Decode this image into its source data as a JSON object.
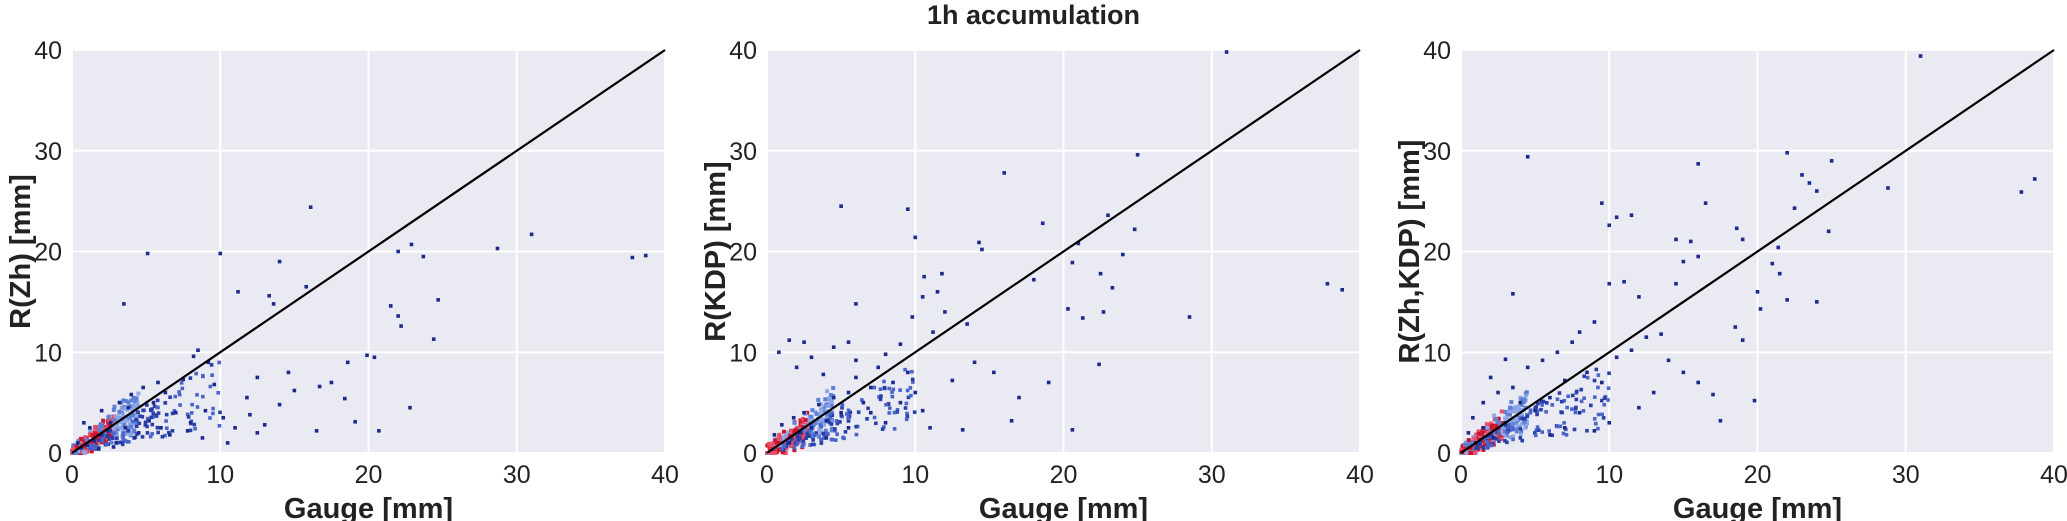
{
  "figure": {
    "title": "1h accumulation"
  },
  "chart_data": [
    {
      "type": "scatter",
      "panel": "left",
      "xlabel": "Gauge [mm]",
      "ylabel": "R(Zh) [mm]",
      "xlim": [
        0,
        40
      ],
      "ylim": [
        0,
        40
      ],
      "xticks": [
        "0",
        "10",
        "20",
        "30",
        "40"
      ],
      "yticks": [
        "0",
        "10",
        "20",
        "30",
        "40"
      ],
      "grid": true,
      "reference_line": [
        [
          0,
          0
        ],
        [
          40,
          40
        ]
      ],
      "points": [
        [
          3.5,
          14.8
        ],
        [
          5.1,
          19.8
        ],
        [
          10.0,
          19.8
        ],
        [
          14.0,
          19.0
        ],
        [
          16.1,
          24.4
        ],
        [
          15.8,
          16.5
        ],
        [
          11.2,
          16.0
        ],
        [
          13.6,
          14.8
        ],
        [
          8.5,
          10.2
        ],
        [
          8.2,
          9.6
        ],
        [
          9.2,
          9.0
        ],
        [
          13.3,
          15.6
        ],
        [
          22.0,
          20.0
        ],
        [
          22.9,
          20.7
        ],
        [
          23.7,
          19.5
        ],
        [
          21.5,
          14.6
        ],
        [
          22.0,
          13.6
        ],
        [
          22.2,
          12.6
        ],
        [
          24.7,
          15.2
        ],
        [
          24.4,
          11.3
        ],
        [
          20.4,
          9.5
        ],
        [
          19.9,
          9.7
        ],
        [
          18.6,
          9.0
        ],
        [
          22.8,
          4.5
        ],
        [
          16.7,
          6.6
        ],
        [
          18.4,
          5.4
        ],
        [
          19.1,
          3.1
        ],
        [
          20.7,
          2.2
        ],
        [
          16.5,
          2.2
        ],
        [
          28.7,
          20.3
        ],
        [
          31.0,
          21.7
        ],
        [
          37.8,
          19.4
        ],
        [
          38.7,
          19.6
        ],
        [
          14.6,
          8.0
        ],
        [
          12.5,
          7.5
        ],
        [
          11.8,
          5.5
        ],
        [
          9.6,
          6.8
        ],
        [
          7.5,
          7.3
        ],
        [
          6.3,
          6.0
        ],
        [
          4.8,
          6.5
        ],
        [
          5.5,
          5.0
        ],
        [
          7.0,
          4.0
        ],
        [
          8.0,
          3.0
        ],
        [
          9.0,
          4.2
        ],
        [
          10.2,
          3.5
        ],
        [
          11.0,
          2.5
        ],
        [
          12.5,
          2.0
        ],
        [
          14.0,
          4.8
        ],
        [
          6.0,
          2.5
        ],
        [
          4.5,
          2.0
        ],
        [
          3.8,
          4.5
        ],
        [
          2.6,
          3.0
        ],
        [
          2.0,
          1.8
        ],
        [
          1.5,
          1.2
        ],
        [
          1.0,
          0.8
        ],
        [
          0.6,
          0.5
        ],
        [
          2.4,
          2.2
        ],
        [
          3.0,
          1.0
        ],
        [
          3.6,
          2.5
        ],
        [
          4.2,
          1.5
        ],
        [
          5.2,
          3.2
        ],
        [
          6.6,
          1.8
        ],
        [
          7.8,
          2.2
        ],
        [
          8.8,
          1.5
        ],
        [
          10.5,
          1.0
        ],
        [
          12.0,
          3.8
        ],
        [
          13.0,
          2.8
        ],
        [
          15.0,
          6.2
        ],
        [
          17.5,
          7.0
        ],
        [
          5.8,
          7.0
        ],
        [
          4.0,
          5.8
        ],
        [
          3.2,
          5.0
        ],
        [
          2.0,
          4.2
        ],
        [
          1.2,
          2.5
        ],
        [
          0.8,
          3.0
        ],
        [
          0.4,
          1.0
        ],
        [
          1.8,
          0.4
        ],
        [
          2.8,
          0.6
        ]
      ]
    },
    {
      "type": "scatter",
      "panel": "middle",
      "xlabel": "Gauge [mm]",
      "ylabel": "R(KDP) [mm]",
      "xlim": [
        0,
        40
      ],
      "ylim": [
        0,
        40
      ],
      "xticks": [
        "0",
        "10",
        "20",
        "30",
        "40"
      ],
      "yticks": [
        "0",
        "10",
        "20",
        "30",
        "40"
      ],
      "grid": true,
      "reference_line": [
        [
          0,
          0
        ],
        [
          40,
          40
        ]
      ],
      "points": [
        [
          31.0,
          39.8
        ],
        [
          25.0,
          29.6
        ],
        [
          16.0,
          27.8
        ],
        [
          5.0,
          24.5
        ],
        [
          9.5,
          24.2
        ],
        [
          10.0,
          21.4
        ],
        [
          14.3,
          20.9
        ],
        [
          14.5,
          20.2
        ],
        [
          18.6,
          22.8
        ],
        [
          21.0,
          20.8
        ],
        [
          20.6,
          18.9
        ],
        [
          23.0,
          23.6
        ],
        [
          24.8,
          22.2
        ],
        [
          23.3,
          16.4
        ],
        [
          24.0,
          19.7
        ],
        [
          22.5,
          17.8
        ],
        [
          20.3,
          14.3
        ],
        [
          21.3,
          13.4
        ],
        [
          22.7,
          14.0
        ],
        [
          22.4,
          8.8
        ],
        [
          20.6,
          2.3
        ],
        [
          18.0,
          17.2
        ],
        [
          28.5,
          13.5
        ],
        [
          37.8,
          16.8
        ],
        [
          38.8,
          16.2
        ],
        [
          10.6,
          17.5
        ],
        [
          11.8,
          17.8
        ],
        [
          11.5,
          16.0
        ],
        [
          10.5,
          15.5
        ],
        [
          12.0,
          14.0
        ],
        [
          9.8,
          13.5
        ],
        [
          11.2,
          12.0
        ],
        [
          9.0,
          10.8
        ],
        [
          8.0,
          9.8
        ],
        [
          7.5,
          8.5
        ],
        [
          6.0,
          7.5
        ],
        [
          5.5,
          6.0
        ],
        [
          4.5,
          5.5
        ],
        [
          3.5,
          4.8
        ],
        [
          2.5,
          4.0
        ],
        [
          1.8,
          3.5
        ],
        [
          1.0,
          2.8
        ],
        [
          0.5,
          1.8
        ],
        [
          1.5,
          1.0
        ],
        [
          2.2,
          2.0
        ],
        [
          3.0,
          2.5
        ],
        [
          4.0,
          3.2
        ],
        [
          5.0,
          4.0
        ],
        [
          6.5,
          5.0
        ],
        [
          7.0,
          6.5
        ],
        [
          8.5,
          7.0
        ],
        [
          9.5,
          8.0
        ],
        [
          10.0,
          6.0
        ],
        [
          12.5,
          7.2
        ],
        [
          13.5,
          12.8
        ],
        [
          14.0,
          9.0
        ],
        [
          15.3,
          8.0
        ],
        [
          17.0,
          5.5
        ],
        [
          19.0,
          7.0
        ],
        [
          16.5,
          3.2
        ],
        [
          13.2,
          2.3
        ],
        [
          0.8,
          10.0
        ],
        [
          1.5,
          11.2
        ],
        [
          2.5,
          11.0
        ],
        [
          3.0,
          9.5
        ],
        [
          2.0,
          8.5
        ],
        [
          3.8,
          7.8
        ],
        [
          4.5,
          10.5
        ],
        [
          5.5,
          11.0
        ],
        [
          6.0,
          9.2
        ],
        [
          7.0,
          4.0
        ],
        [
          8.0,
          3.0
        ],
        [
          9.0,
          5.0
        ],
        [
          10.5,
          4.2
        ],
        [
          11.0,
          2.5
        ],
        [
          4.0,
          1.5
        ],
        [
          5.5,
          2.5
        ],
        [
          6.0,
          14.8
        ]
      ]
    },
    {
      "type": "scatter",
      "panel": "right",
      "xlabel": "Gauge [mm]",
      "ylabel": "R(Zh,KDP) [mm]",
      "xlim": [
        0,
        40
      ],
      "ylim": [
        0,
        40
      ],
      "xticks": [
        "0",
        "10",
        "20",
        "30",
        "40"
      ],
      "yticks": [
        "0",
        "10",
        "20",
        "30",
        "40"
      ],
      "grid": true,
      "reference_line": [
        [
          0,
          0
        ],
        [
          40,
          40
        ]
      ],
      "points": [
        [
          31.0,
          39.4
        ],
        [
          4.5,
          29.4
        ],
        [
          22.0,
          29.8
        ],
        [
          25.0,
          29.0
        ],
        [
          16.0,
          28.7
        ],
        [
          23.0,
          27.6
        ],
        [
          23.5,
          26.8
        ],
        [
          24.0,
          26.0
        ],
        [
          28.8,
          26.3
        ],
        [
          37.8,
          25.9
        ],
        [
          38.7,
          27.2
        ],
        [
          16.5,
          24.8
        ],
        [
          9.5,
          24.8
        ],
        [
          10.0,
          22.6
        ],
        [
          10.5,
          23.4
        ],
        [
          11.5,
          23.6
        ],
        [
          14.5,
          21.2
        ],
        [
          15.5,
          21.0
        ],
        [
          16.0,
          19.5
        ],
        [
          18.6,
          22.3
        ],
        [
          19.0,
          21.2
        ],
        [
          21.4,
          20.4
        ],
        [
          22.5,
          24.3
        ],
        [
          24.8,
          22.0
        ],
        [
          20.0,
          16.0
        ],
        [
          21.0,
          18.8
        ],
        [
          21.5,
          17.8
        ],
        [
          22.0,
          15.2
        ],
        [
          24.0,
          15.0
        ],
        [
          20.2,
          14.3
        ],
        [
          15.0,
          19.0
        ],
        [
          14.5,
          16.8
        ],
        [
          10.0,
          16.8
        ],
        [
          11.0,
          17.0
        ],
        [
          12.0,
          15.5
        ],
        [
          3.5,
          15.8
        ],
        [
          9.0,
          13.0
        ],
        [
          8.0,
          12.0
        ],
        [
          7.5,
          11.0
        ],
        [
          6.5,
          10.0
        ],
        [
          5.5,
          9.2
        ],
        [
          4.5,
          8.5
        ],
        [
          3.0,
          9.3
        ],
        [
          2.0,
          7.5
        ],
        [
          1.5,
          5.0
        ],
        [
          2.5,
          6.0
        ],
        [
          3.5,
          6.5
        ],
        [
          4.0,
          5.0
        ],
        [
          5.0,
          4.2
        ],
        [
          6.0,
          5.5
        ],
        [
          7.0,
          7.2
        ],
        [
          8.5,
          8.0
        ],
        [
          9.5,
          7.0
        ],
        [
          10.5,
          9.5
        ],
        [
          11.5,
          10.2
        ],
        [
          12.5,
          11.5
        ],
        [
          13.5,
          11.8
        ],
        [
          14.0,
          9.2
        ],
        [
          15.0,
          8.0
        ],
        [
          16.0,
          7.0
        ],
        [
          17.0,
          5.8
        ],
        [
          18.5,
          12.5
        ],
        [
          19.0,
          11.2
        ],
        [
          17.5,
          3.2
        ],
        [
          19.8,
          5.2
        ],
        [
          13.0,
          6.0
        ],
        [
          12.0,
          4.5
        ],
        [
          10.0,
          3.0
        ],
        [
          9.0,
          2.2
        ],
        [
          8.0,
          4.0
        ],
        [
          7.0,
          2.5
        ],
        [
          6.0,
          1.8
        ],
        [
          1.0,
          1.0
        ],
        [
          0.5,
          2.0
        ],
        [
          1.5,
          2.5
        ],
        [
          0.8,
          3.5
        ],
        [
          2.2,
          1.5
        ],
        [
          3.0,
          3.0
        ]
      ]
    }
  ]
}
